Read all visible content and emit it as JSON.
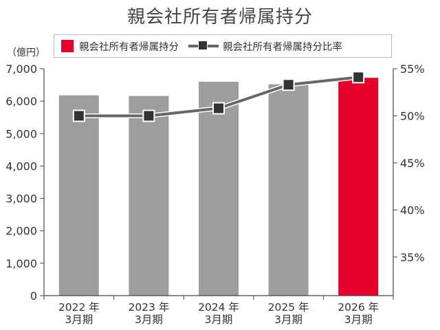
{
  "title": "親会社所有者帰属持分",
  "legend": {
    "bar_label": "親会社所有者帰属持分",
    "line_label": "親会社所有者帰属持分比率"
  },
  "unit_label": "（億円）",
  "colors": {
    "bar_default": "#9d9d9d",
    "bar_highlight": "#e4002b",
    "line": "#666666",
    "marker": "#333333"
  },
  "chart_data": {
    "type": "bar",
    "title": "親会社所有者帰属持分",
    "categories": [
      "2022 年\n3月期",
      "2023 年\n3月期",
      "2024 年\n3月期",
      "2025 年\n3月期",
      "2026 年\n3月期"
    ],
    "series": [
      {
        "name": "親会社所有者帰属持分",
        "type": "bar",
        "axis": "left",
        "values": [
          6180,
          6160,
          6600,
          6520,
          6720
        ],
        "highlight_index": 4
      },
      {
        "name": "親会社所有者帰属持分比率",
        "type": "line",
        "axis": "right",
        "values": [
          50.0,
          50.0,
          50.8,
          53.3,
          54.1
        ]
      }
    ],
    "y_left": {
      "range": [
        0,
        7000
      ],
      "ticks": [
        0,
        1000,
        2000,
        3000,
        4000,
        5000,
        6000,
        7000
      ],
      "tick_labels": [
        "0",
        "1,000",
        "2,000",
        "3,000",
        "4,000",
        "5,000",
        "6,000",
        "7,000"
      ]
    },
    "y_right": {
      "range": [
        30.9,
        55
      ],
      "ticks": [
        35,
        40,
        45,
        50,
        55
      ],
      "tick_labels": [
        "35%",
        "40%",
        "45%",
        "50%",
        "55%"
      ]
    },
    "grid": false,
    "legend_position": "top"
  }
}
